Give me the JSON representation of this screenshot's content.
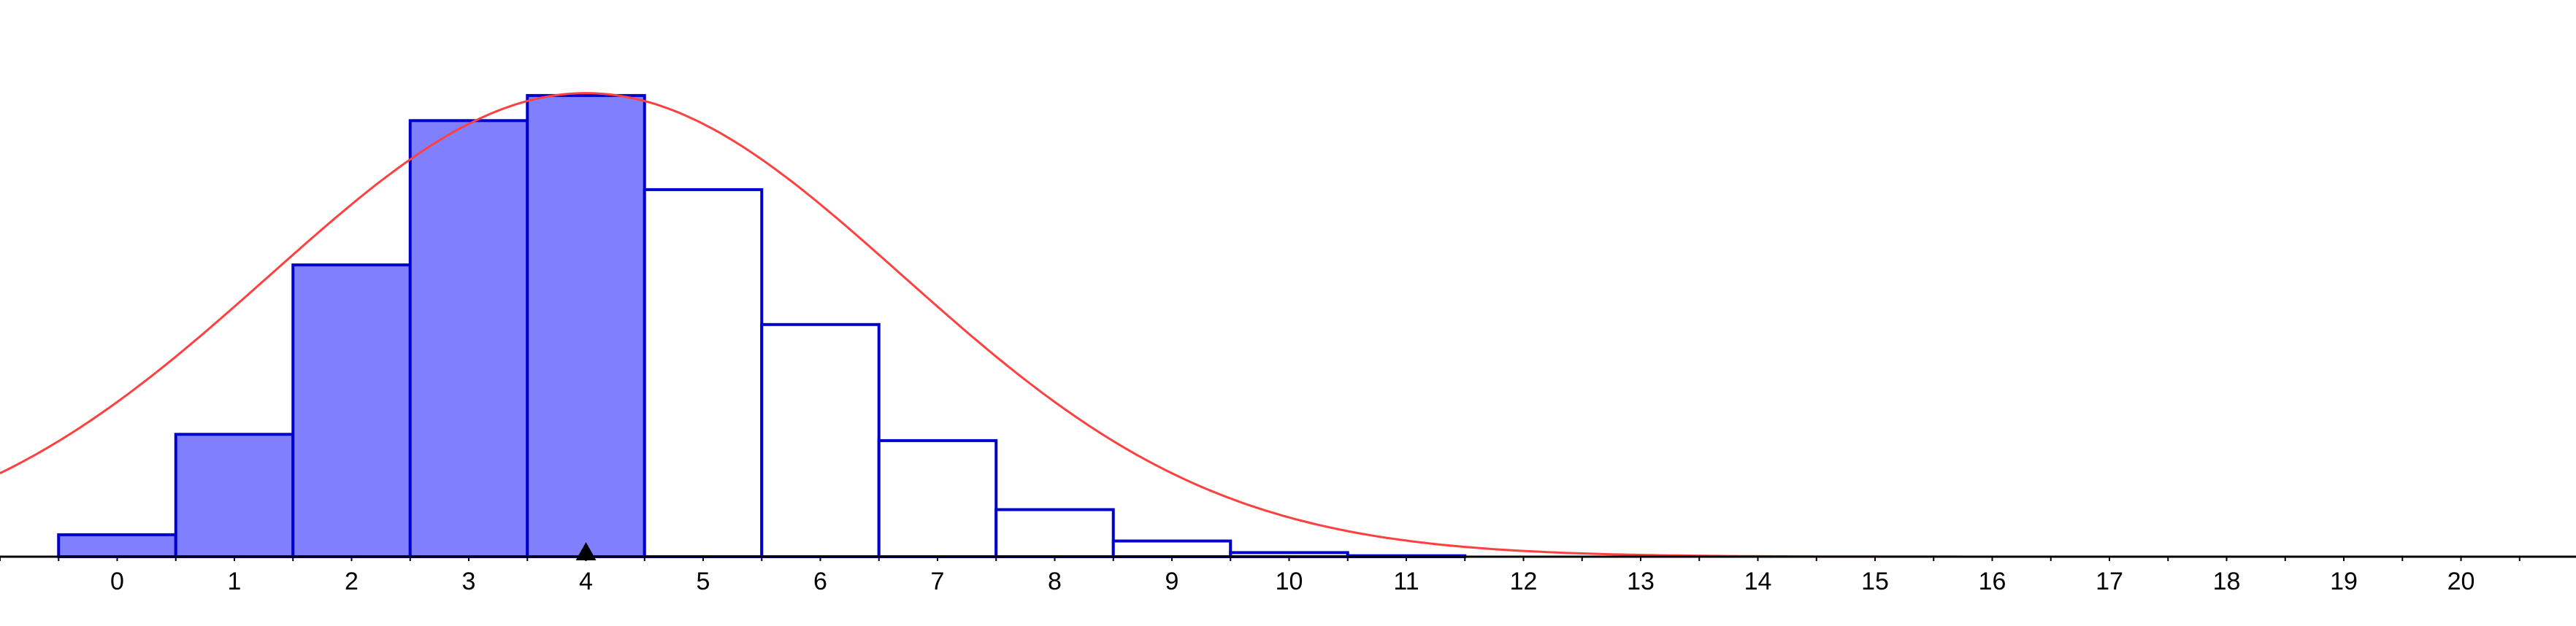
{
  "chart_data": {
    "type": "bar",
    "categories": [
      "0",
      "1",
      "2",
      "3",
      "4",
      "5",
      "6",
      "7",
      "8",
      "9",
      "10",
      "11",
      "12",
      "13",
      "14",
      "15",
      "16",
      "17",
      "18",
      "19",
      "20"
    ],
    "values": [
      0.007,
      0.039,
      0.093,
      0.139,
      0.147,
      0.117,
      0.074,
      0.037,
      0.015,
      0.005,
      0.0013,
      0.0003,
      0.0001,
      0,
      0,
      0,
      0,
      0,
      0,
      0,
      0
    ],
    "highlighted_upto": 4,
    "marker_x": 4,
    "normal_curve": {
      "mean": 4,
      "sd": 2.7
    },
    "x_tick_labels": [
      "0",
      "1",
      "2",
      "3",
      "4",
      "5",
      "6",
      "7",
      "8",
      "9",
      "10",
      "11",
      "12",
      "13",
      "14",
      "15",
      "16",
      "17",
      "18",
      "19",
      "20"
    ],
    "xlim": [
      -1,
      21
    ],
    "ylim": [
      0,
      0.1575
    ],
    "grid": false,
    "colors": {
      "bar_edge": "#0000cc",
      "bar_fill_highlight": "#8080ff",
      "bar_fill_rest": "#ffffff",
      "curve": "#ff4040",
      "axis": "#000000",
      "marker": "#000000"
    }
  }
}
